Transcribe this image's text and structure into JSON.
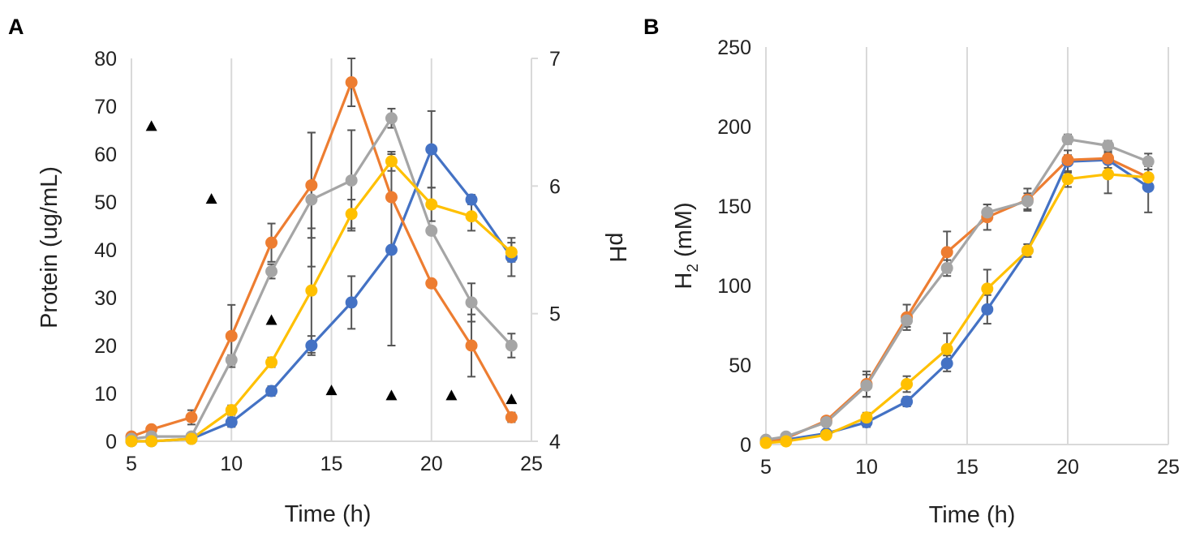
{
  "chart_data": [
    {
      "panel_label": "A",
      "type": "line",
      "xlabel": "Time (h)",
      "ylabel": "Protein (ug/mL)",
      "y2label": "pH",
      "xlim": [
        5,
        25
      ],
      "ylim": [
        0,
        80
      ],
      "y2lim": [
        4,
        7
      ],
      "xticks": [
        5,
        10,
        15,
        20,
        25
      ],
      "yticks": [
        0,
        10,
        20,
        30,
        40,
        50,
        60,
        70,
        80
      ],
      "y2ticks": [
        4,
        5,
        6,
        7
      ],
      "grid": "vertical",
      "series": [
        {
          "name": "blue",
          "color": "#4472C4",
          "x": [
            5,
            6,
            8,
            10,
            12,
            14,
            16,
            18,
            20,
            22,
            24
          ],
          "y": [
            0,
            0,
            0.5,
            4,
            10.5,
            20,
            29,
            40,
            61,
            50.5,
            38.5
          ],
          "err": [
            0,
            0,
            0.5,
            1,
            1,
            2,
            5.5,
            20,
            8,
            1,
            4
          ]
        },
        {
          "name": "orange",
          "color": "#ED7D31",
          "x": [
            5,
            6,
            8,
            10,
            12,
            14,
            16,
            18,
            20,
            22,
            24
          ],
          "y": [
            1,
            2.5,
            5,
            22,
            41.5,
            53.5,
            75,
            51,
            33,
            20,
            5
          ],
          "err": [
            0,
            0.5,
            1.5,
            6.5,
            4,
            11,
            5,
            0,
            0.5,
            6.5,
            1
          ]
        },
        {
          "name": "gray",
          "color": "#A5A5A5",
          "x": [
            5,
            6,
            8,
            10,
            12,
            14,
            16,
            18,
            20,
            22,
            24
          ],
          "y": [
            0.5,
            1,
            1,
            17,
            35.5,
            50.5,
            54.5,
            67.5,
            44,
            29,
            20
          ],
          "err": [
            0,
            0.5,
            0.5,
            1,
            1.5,
            14,
            10.5,
            2,
            0.5,
            4,
            2.5
          ]
        },
        {
          "name": "yellow",
          "color": "#FFC000",
          "x": [
            5,
            6,
            8,
            10,
            12,
            14,
            16,
            18,
            20,
            22,
            24
          ],
          "y": [
            0,
            0,
            0.5,
            6.5,
            16.5,
            31.5,
            47.5,
            58.5,
            49.5,
            47,
            39.5
          ],
          "err": [
            0,
            0,
            0.5,
            1,
            1,
            13,
            3,
            2,
            3.5,
            3,
            2
          ]
        }
      ],
      "ph_series": {
        "name": "pH",
        "marker": "triangle",
        "color": "#000000",
        "x": [
          6,
          9,
          12,
          15,
          18,
          21,
          24
        ],
        "y": [
          6.47,
          5.9,
          4.95,
          4.4,
          4.36,
          4.36,
          4.33
        ]
      }
    },
    {
      "panel_label": "B",
      "type": "line",
      "xlabel": "Time (h)",
      "ylabel_prefix": "H",
      "ylabel_sub": "2",
      "ylabel_suffix": " (mM)",
      "xlim": [
        5,
        25
      ],
      "ylim": [
        0,
        250
      ],
      "xticks": [
        5,
        10,
        15,
        20,
        25
      ],
      "yticks": [
        0,
        50,
        100,
        150,
        200,
        250
      ],
      "grid": "vertical",
      "series": [
        {
          "name": "blue",
          "color": "#4472C4",
          "x": [
            5,
            6,
            8,
            10,
            12,
            14,
            16,
            18,
            20,
            22,
            24
          ],
          "y": [
            2,
            3,
            7,
            14,
            27,
            51,
            85,
            122,
            178,
            179,
            162
          ],
          "err": [
            0,
            0,
            1,
            3,
            3,
            5,
            9,
            4,
            7,
            5,
            16
          ]
        },
        {
          "name": "orange",
          "color": "#ED7D31",
          "x": [
            5,
            6,
            8,
            10,
            12,
            14,
            16,
            18,
            20,
            22,
            24
          ],
          "y": [
            2,
            4,
            15,
            38,
            80,
            121,
            143,
            154,
            179,
            180,
            168
          ],
          "err": [
            0,
            1,
            2,
            8,
            8,
            13,
            8,
            7,
            3,
            3,
            5
          ]
        },
        {
          "name": "gray",
          "color": "#A5A5A5",
          "x": [
            5,
            6,
            8,
            10,
            12,
            14,
            16,
            18,
            20,
            22,
            24
          ],
          "y": [
            3,
            5,
            14,
            37,
            78,
            111,
            146,
            153,
            192,
            188,
            178
          ],
          "err": [
            0,
            1,
            1,
            7,
            4,
            5,
            5,
            5,
            3,
            3,
            5
          ]
        },
        {
          "name": "yellow",
          "color": "#FFC000",
          "x": [
            5,
            6,
            8,
            10,
            12,
            14,
            16,
            18,
            20,
            22,
            24
          ],
          "y": [
            1,
            2,
            6,
            17,
            38,
            60,
            98,
            122,
            167,
            170,
            168
          ],
          "err": [
            0,
            0,
            1,
            3,
            5,
            10,
            12,
            4,
            5,
            12,
            7
          ]
        }
      ]
    }
  ]
}
